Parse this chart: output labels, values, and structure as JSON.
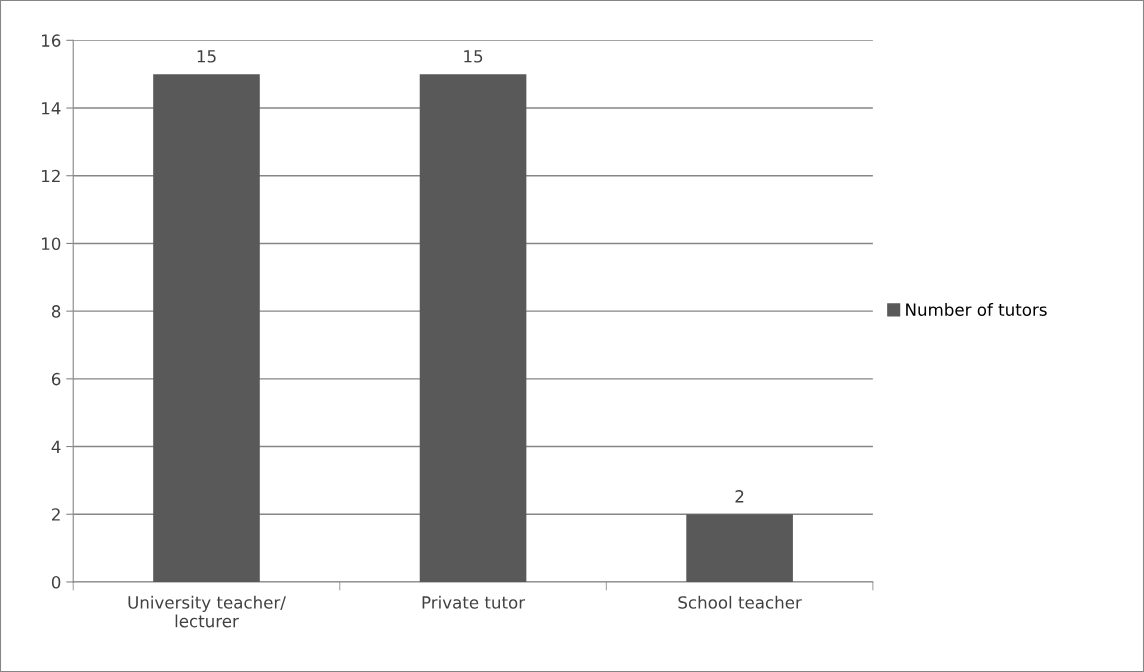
{
  "chart_data": {
    "type": "bar",
    "categories": [
      "University teacher/\nlecturer",
      "Private tutor",
      "School teacher"
    ],
    "series": [
      {
        "name": "Number of tutors",
        "color": "#595959",
        "values": [
          15,
          15,
          2
        ]
      }
    ],
    "ylim": [
      0,
      16
    ],
    "yticks": [
      0,
      2,
      4,
      6,
      8,
      10,
      12,
      14,
      16
    ],
    "grid": "y",
    "legend": "right",
    "data_labels": true
  }
}
